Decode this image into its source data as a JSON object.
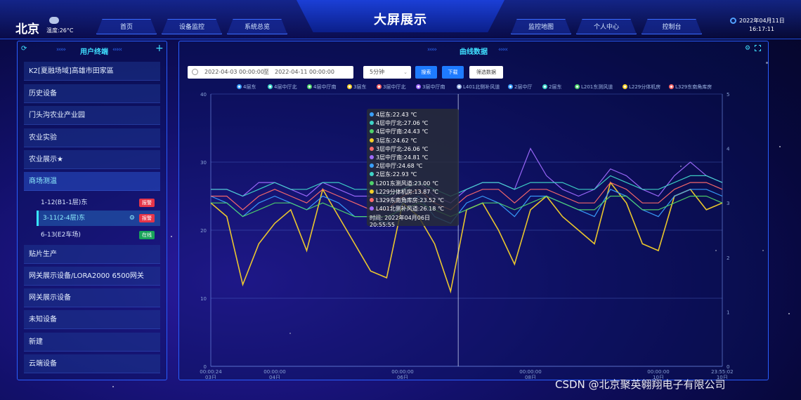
{
  "header": {
    "city": "北京",
    "temperature": "温度:26°C",
    "title": "大屏展示",
    "nav_left": [
      "首页",
      "设备监控",
      "系统总览"
    ],
    "nav_right": [
      "监控地图",
      "个人中心",
      "控制台"
    ],
    "date": "2022年04月11日",
    "time": "16:17:11"
  },
  "sidebar": {
    "title": "用户终端",
    "items": [
      "K2[夏融场域]高雄市田家區",
      "历史设备",
      "门头沟农业产业园",
      "农业实验",
      "农业展示★",
      "商场测温",
      "贴片生产",
      "网关展示设备/LORA2000 6500网关",
      "网关展示设备",
      "未知设备",
      "新建",
      "云端设备"
    ],
    "sub_items": [
      {
        "label": "1-12(B1-1层)东",
        "badge": "报警",
        "badge_type": "alarm"
      },
      {
        "label": "3-11(2-4层)东",
        "badge": "报警",
        "badge_type": "alarm"
      },
      {
        "label": "6-13(E2车场)",
        "badge": "在线",
        "badge_type": "online"
      }
    ]
  },
  "chart_panel": {
    "title": "曲线数据",
    "date_start": "2022-04-03 00:00:00",
    "date_sep": "至",
    "date_end": "2022-04-11 00:00:00",
    "interval": "5分钟",
    "search_btn": "搜索",
    "download_btn": "下载",
    "filter_btn": "筛选数据"
  },
  "tooltip": {
    "rows": [
      {
        "text": "4层东:22.43 ℃",
        "color": "#3aa0ff"
      },
      {
        "text": "4层中厅北:27.06 ℃",
        "color": "#3fd6c8"
      },
      {
        "text": "4层中厅南:24.43 ℃",
        "color": "#4fd36b"
      },
      {
        "text": "3层东:24.62 ℃",
        "color": "#f5d02a"
      },
      {
        "text": "3层中厅北:26.06 ℃",
        "color": "#ff6b6b"
      },
      {
        "text": "3层中厅南:24.81 ℃",
        "color": "#9f6bff"
      },
      {
        "text": "2层中厅:24.68 ℃",
        "color": "#3aa0ff"
      },
      {
        "text": "2层东:22.93 ℃",
        "color": "#3fd6c8"
      },
      {
        "text": "L201东测风道:23.00 ℃",
        "color": "#4fd36b"
      },
      {
        "text": "L229分体机房:13.87 ℃",
        "color": "#f5d02a"
      },
      {
        "text": "L329东南角库房:23.52 ℃",
        "color": "#ff6b6b"
      },
      {
        "text": "L401北侧补风道:26.18 ℃",
        "color": "#9f6bff"
      }
    ],
    "time": "时间:  2022年04月06日 20:55:55"
  },
  "chart_data": {
    "type": "line",
    "legend": [
      {
        "name": "4层东",
        "color": "#3aa0ff"
      },
      {
        "name": "4层中厅北",
        "color": "#3fd6c8"
      },
      {
        "name": "4层中厅南",
        "color": "#4fd36b"
      },
      {
        "name": "3层东",
        "color": "#f5d02a"
      },
      {
        "name": "3层中厅北",
        "color": "#ff6b6b"
      },
      {
        "name": "3层中厅南",
        "color": "#9f6bff"
      },
      {
        "name": "L401北侧补风道",
        "color": "#9fb8e6"
      },
      {
        "name": "2层中厅",
        "color": "#3aa0ff"
      },
      {
        "name": "2层东",
        "color": "#3fd6c8"
      },
      {
        "name": "L201东测风道",
        "color": "#4fd36b"
      },
      {
        "name": "L229分体机房",
        "color": "#f5d02a"
      },
      {
        "name": "L329东南角库房",
        "color": "#ff6b6b"
      }
    ],
    "y_left": {
      "ticks": [
        0,
        10,
        20,
        30,
        40
      ],
      "range": [
        0,
        40
      ]
    },
    "y_right": {
      "ticks": [
        0,
        1,
        2,
        3,
        4,
        5
      ],
      "range": [
        0,
        5
      ]
    },
    "x_ticks": [
      {
        "time": "00:00:24",
        "date": "03日"
      },
      {
        "time": "00:00:00",
        "date": "04日"
      },
      {
        "time": "00:00:00",
        "date": "06日"
      },
      {
        "time": "00:00:00",
        "date": "08日"
      },
      {
        "time": "00:00:00",
        "date": "10日"
      },
      {
        "time": "23:55:02",
        "date": "10日"
      }
    ],
    "x_range_days": [
      3.0,
      11.0
    ],
    "series": [
      {
        "name": "3层东",
        "color": "#f5d02a",
        "y": [
          24,
          22,
          12,
          18,
          21,
          23,
          17,
          26,
          22,
          18,
          14,
          13,
          24,
          22,
          18,
          11,
          23,
          24,
          20,
          15,
          23,
          25,
          22,
          20,
          18,
          27,
          24,
          18,
          17,
          25,
          26,
          23,
          24
        ]
      },
      {
        "name": "3层中厅南",
        "color": "#9f6bff",
        "y": [
          26,
          26,
          25,
          27,
          27,
          26,
          25,
          27,
          26,
          25,
          25,
          24,
          26,
          27,
          25,
          24,
          26,
          27,
          27,
          26,
          32,
          28,
          26,
          25,
          26,
          29,
          28,
          26,
          25,
          28,
          30,
          28,
          27
        ]
      },
      {
        "name": "4层中厅北",
        "color": "#3fd6c8",
        "y": [
          26,
          26,
          25,
          26,
          27,
          26,
          26,
          27,
          27,
          26,
          26,
          25,
          26,
          27,
          26,
          25,
          26,
          27,
          27,
          26,
          27,
          27,
          27,
          26,
          26,
          28,
          27,
          26,
          26,
          27,
          28,
          28,
          27
        ]
      },
      {
        "name": "4层东",
        "color": "#3aa0ff",
        "y": [
          25,
          24,
          22,
          24,
          25,
          24,
          23,
          25,
          24,
          22,
          22,
          21,
          24,
          25,
          22,
          21,
          24,
          25,
          24,
          22,
          25,
          25,
          24,
          23,
          22,
          26,
          25,
          23,
          22,
          25,
          26,
          26,
          25
        ]
      },
      {
        "name": "4层中厅南",
        "color": "#4fd36b",
        "y": [
          24,
          24,
          22,
          23,
          24,
          24,
          23,
          24,
          23,
          22,
          22,
          22,
          23,
          24,
          23,
          22,
          23,
          24,
          24,
          23,
          24,
          25,
          24,
          23,
          23,
          25,
          25,
          23,
          23,
          24,
          25,
          25,
          24
        ]
      },
      {
        "name": "3层中厅北",
        "color": "#ff6b6b",
        "y": [
          25,
          25,
          23,
          25,
          26,
          25,
          24,
          26,
          25,
          24,
          23,
          23,
          25,
          26,
          24,
          23,
          25,
          26,
          26,
          24,
          26,
          26,
          25,
          24,
          24,
          27,
          26,
          24,
          24,
          26,
          27,
          27,
          26
        ]
      }
    ]
  },
  "watermark": "CSDN @北京聚英翱翔电子有限公司"
}
